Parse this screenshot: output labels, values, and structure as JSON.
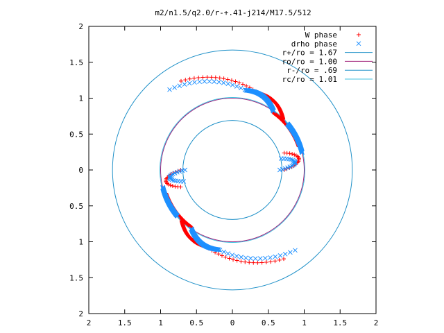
{
  "chart_data": {
    "type": "scatter",
    "title": "m2/n1.5/q2.0/r-+.41-j214/M17.5/512",
    "xlim": [
      -2,
      2
    ],
    "ylim": [
      -2,
      2
    ],
    "x_tick_labels": [
      "2",
      "1.5",
      "1",
      "0.5",
      "0",
      "0.5",
      "1",
      "1.5",
      "2"
    ],
    "x_tick_values": [
      -2,
      -1.5,
      -1,
      -0.5,
      0,
      0.5,
      1,
      1.5,
      2
    ],
    "y_tick_labels": [
      "2",
      "1.5",
      "1",
      "0.5",
      "0",
      "0.5",
      "1",
      "1.5",
      "2"
    ],
    "y_tick_values": [
      2,
      1.5,
      1,
      0.5,
      0,
      -0.5,
      -1,
      -1.5,
      -2
    ],
    "grid": false,
    "legend_position": "top-right",
    "legend": [
      {
        "label": "W phase",
        "marker": "plus",
        "color": "#ff0000"
      },
      {
        "label": "drho phase",
        "marker": "cross",
        "color": "#1e90ff"
      },
      {
        "label": "r+/ro = 1.67",
        "marker": "line",
        "color": "#1e90c8"
      },
      {
        "label": "ro/ro = 1.00",
        "marker": "line",
        "color": "#a0207a"
      },
      {
        "label": "r-/ro = .69",
        "marker": "line",
        "color": "#1e90c8"
      },
      {
        "label": "rc/ro = 1.01",
        "marker": "line",
        "color": "#40c0e0"
      }
    ],
    "circles": [
      {
        "name": "r+/ro",
        "radius": 1.67,
        "color": "#1e90c8"
      },
      {
        "name": "ro/ro",
        "radius": 1.0,
        "color": "#a0207a"
      },
      {
        "name": "r-/ro",
        "radius": 0.69,
        "color": "#1e90c8"
      },
      {
        "name": "rc/ro",
        "radius": 1.01,
        "color": "#40c0e0"
      }
    ],
    "series": [
      {
        "name": "W phase",
        "color": "#ff0000",
        "marker": "plus",
        "arms": [
          {
            "theta_start": 45,
            "r_start": 1.0,
            "theta_end": 120,
            "r_end": 1.43,
            "twist_at": 0.78,
            "outward": true
          },
          {
            "theta_start": 225,
            "r_start": 1.0,
            "theta_end": 300,
            "r_end": 1.43,
            "twist_at": 0.78,
            "outward": true
          },
          {
            "theta_start": 180,
            "r_start": 0.72,
            "theta_end": 235,
            "r_end": 0.98,
            "twist_at": 0.2,
            "outward": false
          },
          {
            "theta_start": 0,
            "r_start": 0.72,
            "theta_end": 55,
            "r_end": 0.98,
            "twist_at": 0.2,
            "outward": false
          }
        ]
      },
      {
        "name": "drho phase",
        "color": "#1e90ff",
        "marker": "cross",
        "arms": [
          {
            "theta_start": 55,
            "r_start": 1.0,
            "theta_end": 128,
            "r_end": 1.42,
            "twist_at": 0.82,
            "outward": true
          },
          {
            "theta_start": 235,
            "r_start": 1.0,
            "theta_end": 308,
            "r_end": 1.42,
            "twist_at": 0.82,
            "outward": true
          },
          {
            "theta_start": 0,
            "r_start": 0.66,
            "theta_end": 40,
            "r_end": 1.0,
            "twist_at": 0.2,
            "outward": false
          },
          {
            "theta_start": 180,
            "r_start": 0.66,
            "theta_end": 220,
            "r_end": 1.0,
            "twist_at": 0.2,
            "outward": false
          }
        ]
      }
    ]
  }
}
